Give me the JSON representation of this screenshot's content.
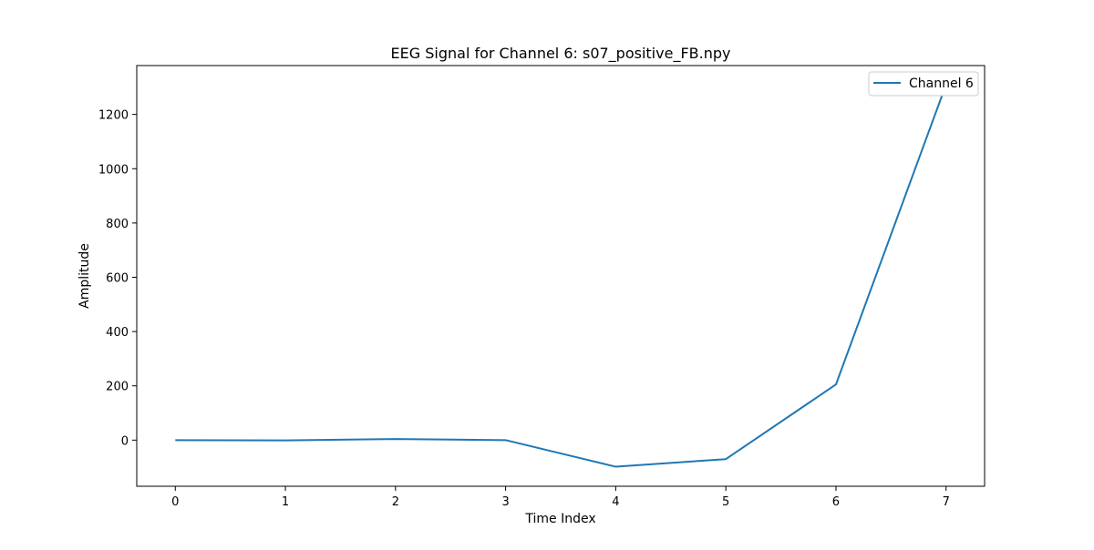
{
  "chart_data": {
    "type": "line",
    "title": "EEG Signal for Channel 6: s07_positive_FB.npy",
    "xlabel": "Time Index",
    "ylabel": "Amplitude",
    "x": [
      0,
      1,
      2,
      3,
      4,
      5,
      6,
      7
    ],
    "series": [
      {
        "name": "Channel 6",
        "color": "#1f77b4",
        "values": [
          0,
          -1,
          4,
          0,
          -98,
          -70,
          205,
          1310
        ]
      }
    ],
    "xlim": [
      -0.35,
      7.35
    ],
    "ylim": [
      -170,
      1380
    ],
    "xticks": [
      0,
      1,
      2,
      3,
      4,
      5,
      6,
      7
    ],
    "yticks": [
      0,
      200,
      400,
      600,
      800,
      1000,
      1200
    ],
    "grid": false,
    "legend_position": "upper-right"
  }
}
